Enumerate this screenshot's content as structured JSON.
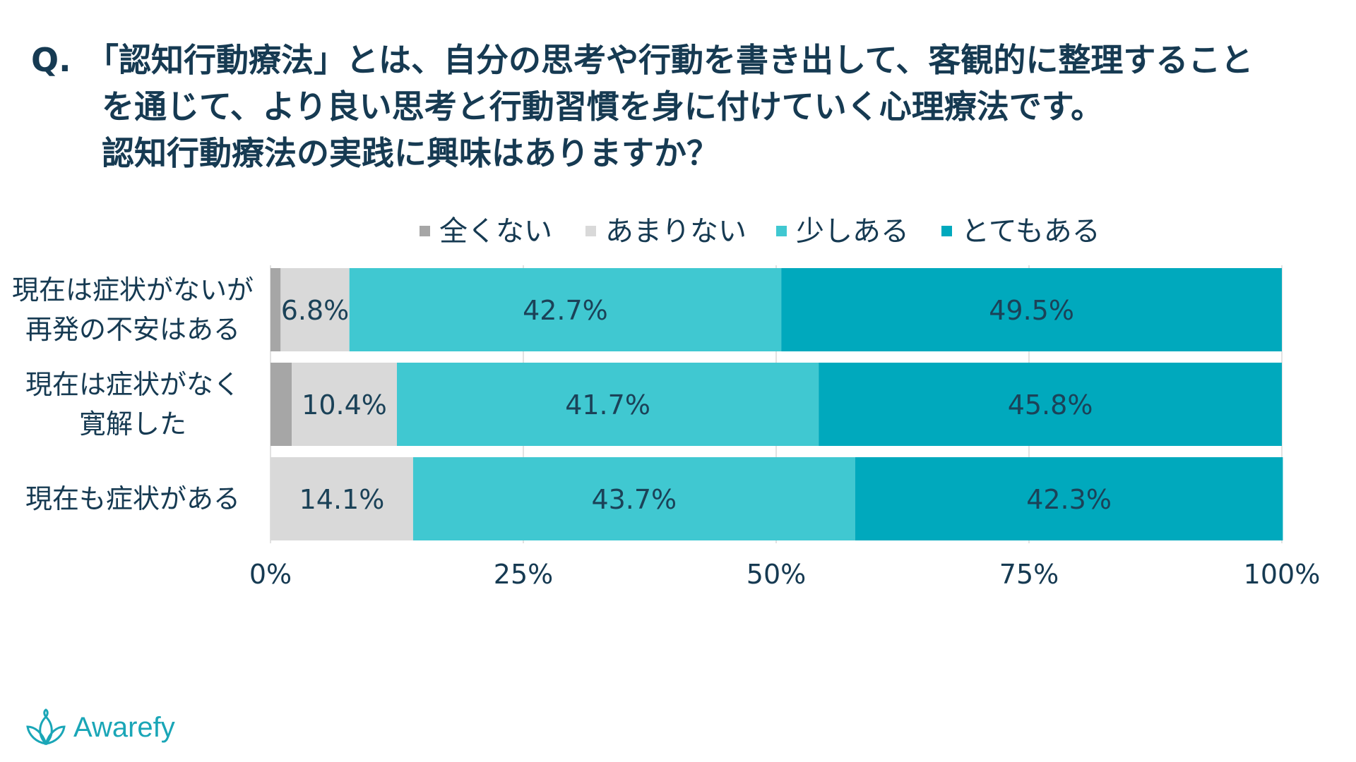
{
  "question": {
    "mark": "Q.",
    "lines": [
      "「認知行動療法」とは、自分の思考や行動を書き出して、客観的に整理すること",
      "を通じて、より良い思考と行動習慣を身に付けていく心理療法です。",
      "認知行動療法の実践に興味はありますか？"
    ]
  },
  "brand": {
    "name": "Awarefy",
    "logo_icon": "lotus-icon",
    "color": "#1aa6b7"
  },
  "chart_data": {
    "type": "stacked-bar-horizontal",
    "title": "認知行動療法の実践に興味はありますか？",
    "legend_position": "top",
    "categories": [
      [
        "現在は症状がないが",
        "再発の不安はある"
      ],
      [
        "現在は症状がなく",
        "寛解した"
      ],
      [
        "現在も症状がある"
      ]
    ],
    "series": [
      {
        "name": "全くない",
        "color": "#a6a6a6",
        "values": [
          1.0,
          2.1,
          0.0
        ],
        "labels": [
          "",
          "",
          ""
        ]
      },
      {
        "name": "あまりない",
        "color": "#d9d9d9",
        "values": [
          6.8,
          10.4,
          14.1
        ],
        "labels": [
          "6.8%",
          "10.4%",
          "14.1%"
        ]
      },
      {
        "name": "少しある",
        "color": "#40c8d1",
        "values": [
          42.7,
          41.7,
          43.7
        ],
        "labels": [
          "42.7%",
          "41.7%",
          "43.7%"
        ]
      },
      {
        "name": "とてもある",
        "color": "#00a9bd",
        "values": [
          49.5,
          45.8,
          42.3
        ],
        "labels": [
          "49.5%",
          "45.8%",
          "42.3%"
        ]
      }
    ],
    "xlim": [
      0,
      100
    ],
    "xticks": [
      0,
      25,
      50,
      75,
      100
    ],
    "xtick_labels": [
      "0%",
      "25%",
      "50%",
      "75%",
      "100%"
    ],
    "grid": true
  }
}
